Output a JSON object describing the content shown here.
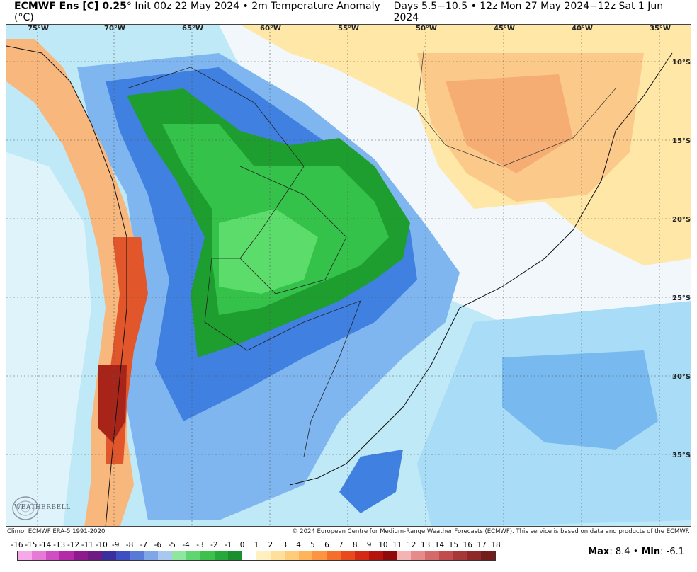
{
  "header": {
    "title_bold": "ECMWF Ens [C] 0.25",
    "title_rest": "° Init 00z 22 May 2024 • 2m Temperature Anomaly (°C)",
    "valid_range": "Days 5.5−10.5 • 12z Mon 27 May 2024−12z Sat 1 Jun 2024"
  },
  "map": {
    "longitude_labels": [
      "75°W",
      "70°W",
      "65°W",
      "60°W",
      "55°W",
      "50°W",
      "45°W",
      "40°W",
      "35°W"
    ],
    "latitude_labels": [
      "10°S",
      "15°S",
      "20°S",
      "25°S",
      "30°S",
      "35°S"
    ],
    "logo_text": "WEATHERBELL"
  },
  "footer": {
    "climo": "Climo: ECMWF ERA-5 1991-2020",
    "copyright": "© 2024 European Centre for Medium-Range Weather Forecasts (ECMWF). This service is based on data and products of the ECMWF."
  },
  "colorbar": {
    "labels": [
      "-16",
      "-15",
      "-14",
      "-13",
      "-12",
      "-11",
      "-10",
      "-9",
      "-8",
      "-7",
      "-6",
      "-5",
      "-4",
      "-3",
      "-2",
      "-1",
      "0",
      "1",
      "2",
      "3",
      "4",
      "5",
      "6",
      "7",
      "8",
      "9",
      "10",
      "11",
      "12",
      "13",
      "14",
      "15",
      "16",
      "17",
      "18"
    ],
    "colors": [
      "#f7a8e8",
      "#e67ad6",
      "#cf4fc2",
      "#b52aa8",
      "#8f1a8f",
      "#6e1b84",
      "#3a2f9c",
      "#3d4fc2",
      "#5a7ad8",
      "#7fa6e8",
      "#a8c8f0",
      "#8fe6a0",
      "#5fd66f",
      "#3cc24c",
      "#26a83a",
      "#1a8f2e",
      "#ffffff",
      "#fff0c0",
      "#ffdf9a",
      "#ffcc7a",
      "#ffb45a",
      "#ff9440",
      "#f4702a",
      "#e84a1c",
      "#d42a14",
      "#b5140e",
      "#8f0a0a",
      "#f4b4b4",
      "#e68a8a",
      "#d46a6a",
      "#c24c4c",
      "#a83838",
      "#8f2828",
      "#741c1c"
    ],
    "max_label": "Max",
    "max_value": ": 8.4 • ",
    "min_label": "Min",
    "min_value": ": -6.1"
  }
}
